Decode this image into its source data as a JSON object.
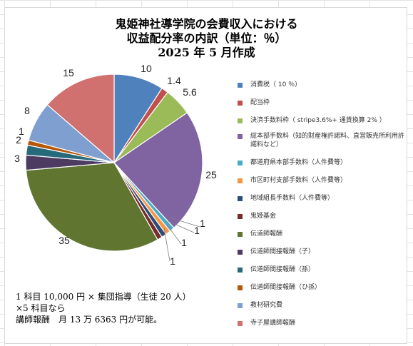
{
  "chart_data": {
    "type": "pie",
    "title_lines": [
      "鬼姫神社導学院の会費収入における",
      "収益配分率の内訳（単位：％）",
      "2025 年 5 月作成"
    ],
    "categories": [
      "消費税（ 10 ％）",
      "配当枠",
      "決済手数料枠（ stripe3.6%+ 通貨換算 2% ）",
      "総本部手数料（知的財産権許諾料、直営販売所利用許諾料など）",
      "都道府県本部手数料（人件費等）",
      "市区町村支部手数料（人件費等）",
      "地域組長手数料（人件費等）",
      "鬼姫基金",
      "伝道師報酬",
      "伝道師間接報酬（子）",
      "伝道師間接報酬（孫）",
      "伝道師間接報酬（ひ孫）",
      "教材研究費",
      "寺子屋講師報酬"
    ],
    "values": [
      10,
      1.4,
      5.6,
      25,
      1,
      1,
      1,
      1,
      35,
      3,
      2,
      1,
      8,
      15
    ],
    "data_labels": [
      "10",
      "1.4",
      "5.6",
      "25",
      "1",
      "1",
      "1",
      "1",
      "35",
      "3",
      "2",
      "1",
      "8",
      "15"
    ],
    "colors": [
      "#4f81bd",
      "#c0504d",
      "#9bbb59",
      "#8064a2",
      "#4bacc6",
      "#f79646",
      "#2c4d75",
      "#772c2a",
      "#5f7530",
      "#4d3b62",
      "#276a7c",
      "#b65708",
      "#7f9fd0",
      "#d07170"
    ],
    "legend_position": "right",
    "start_angle_deg": 0,
    "direction": "clockwise"
  },
  "note": {
    "lines": [
      "1 科目 10,000 円 × 集団指導（生徒 20 人）",
      "×5 科目なら",
      "講師報酬　月 13 万 6363 円が可能。"
    ]
  }
}
